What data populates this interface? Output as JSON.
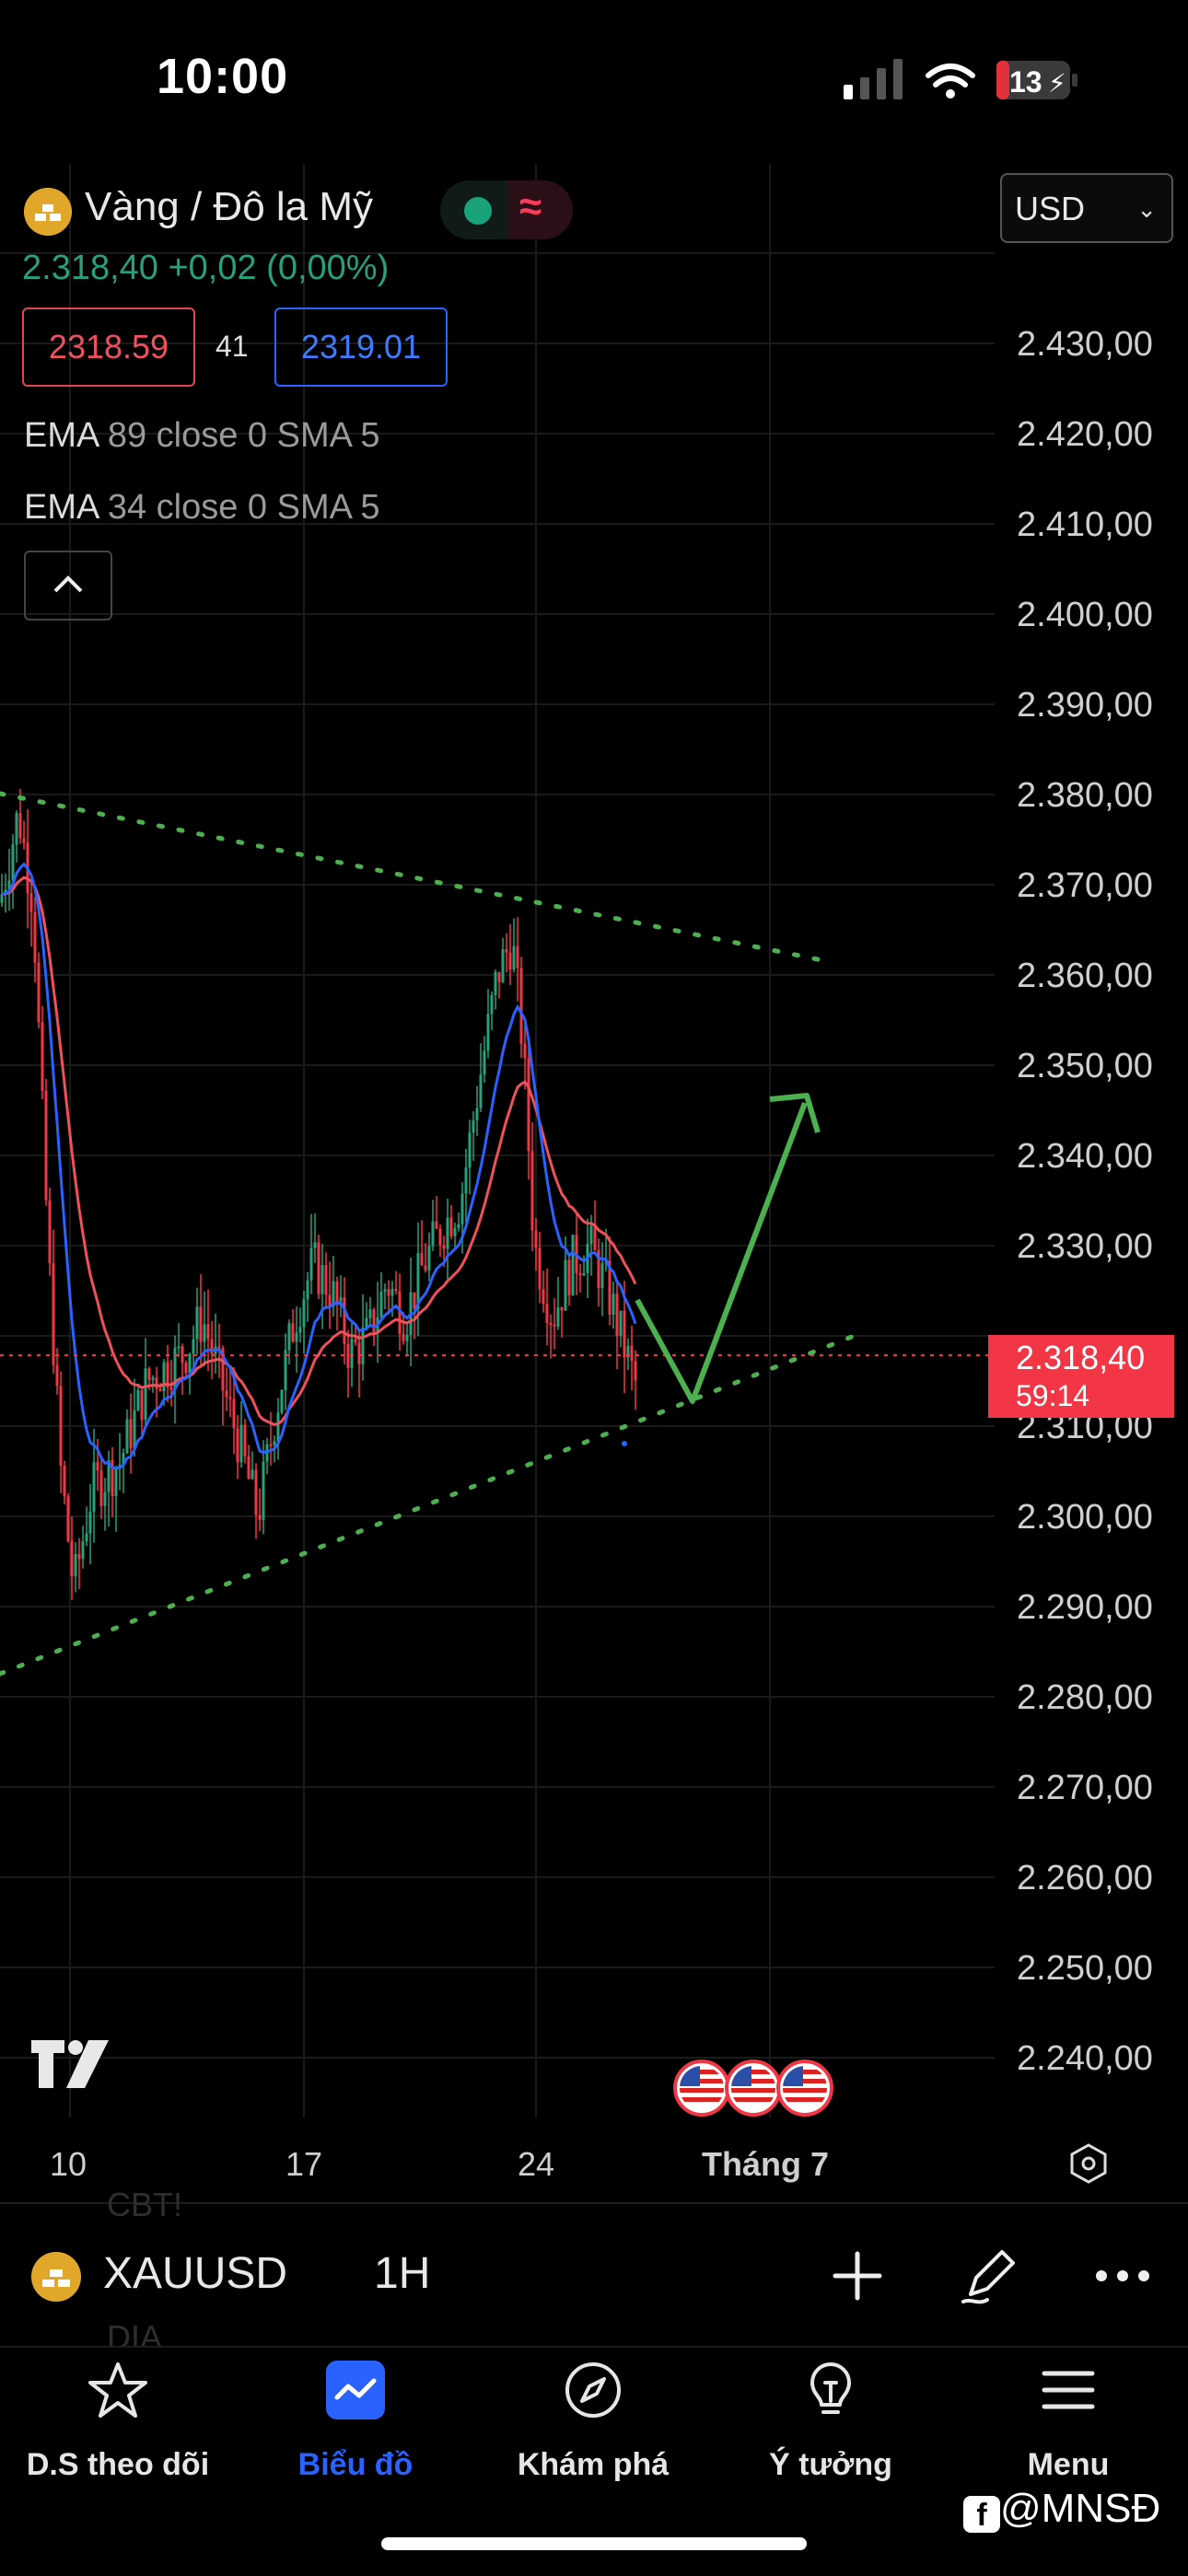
{
  "status_bar": {
    "time": "10:00",
    "battery": "13"
  },
  "header": {
    "title": "Vàng / Đô la Mỹ",
    "currency": "USD",
    "price_change": "2.318,40 +0,02 (0,00%)",
    "bid": "2318.59",
    "spread": "41",
    "ask": "2319.01",
    "indicators": [
      {
        "name": "EMA",
        "params": "89 close 0 SMA 5"
      },
      {
        "name": "EMA",
        "params": "34 close 0 SMA 5"
      }
    ]
  },
  "chart": {
    "y_axis": [
      "2.430,00",
      "2.420,00",
      "2.410,00",
      "2.400,00",
      "2.390,00",
      "2.380,00",
      "2.370,00",
      "2.360,00",
      "2.350,00",
      "2.340,00",
      "2.330,00",
      "2.310,00",
      "2.300,00",
      "2.290,00",
      "2.280,00",
      "2.270,00",
      "2.260,00",
      "2.250,00",
      "2.240,00"
    ],
    "x_axis": [
      "10",
      "17",
      "24",
      "Tháng 7"
    ],
    "last_price": "2.318,40",
    "countdown": "59:14",
    "colors": {
      "up": "#26a17a",
      "down": "#f23645",
      "ema_fast": "#2962ff",
      "ema_slow": "#f0505a",
      "trend": "#4caf50"
    }
  },
  "toolbar": {
    "symbol": "XAUUSD",
    "interval": "1H",
    "ghost_top": "CBT!",
    "ghost_bottom": "DIA"
  },
  "nav": [
    {
      "label": "D.S theo dõi",
      "icon": "star-icon"
    },
    {
      "label": "Biểu đồ",
      "icon": "chart-icon"
    },
    {
      "label": "Khám phá",
      "icon": "compass-icon"
    },
    {
      "label": "Ý tưởng",
      "icon": "lightbulb-icon"
    },
    {
      "label": "Menu",
      "icon": "menu-icon"
    }
  ],
  "watermark": "@MNSĐ"
}
